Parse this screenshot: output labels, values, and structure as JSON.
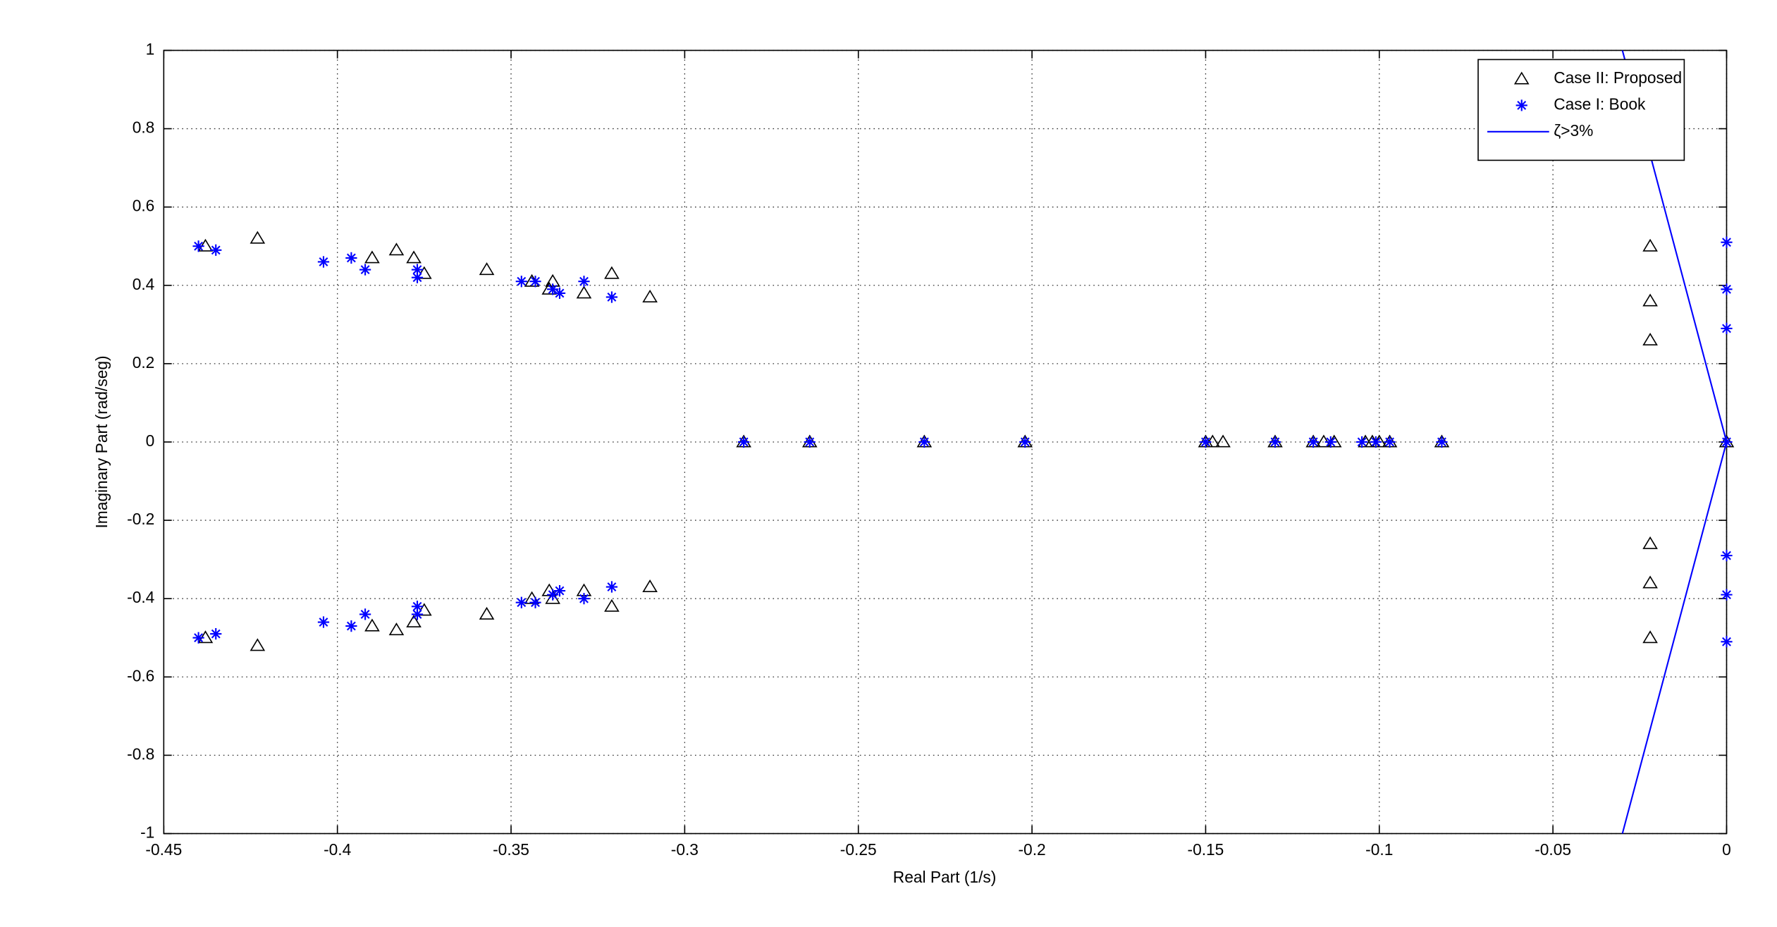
{
  "chart_data": {
    "type": "scatter",
    "xlabel": "Real Part (1/s)",
    "ylabel": "Imaginary Part (rad/seg)",
    "xlim": [
      -0.45,
      0
    ],
    "ylim": [
      -1,
      1
    ],
    "xticks": [
      -0.45,
      -0.4,
      -0.35,
      -0.3,
      -0.25,
      -0.2,
      -0.15,
      -0.1,
      -0.05,
      0
    ],
    "yticks": [
      -1,
      -0.8,
      -0.6,
      -0.4,
      -0.2,
      0,
      0.2,
      0.4,
      0.6,
      0.8,
      1
    ],
    "grid": true,
    "legend": "upper right",
    "series": [
      {
        "name": "Case II: Proposed",
        "color": "#000000",
        "marker": "triangle",
        "x": [
          -0.438,
          -0.423,
          -0.39,
          -0.383,
          -0.378,
          -0.375,
          -0.357,
          -0.344,
          -0.338,
          -0.339,
          -0.329,
          -0.321,
          -0.31,
          -0.022,
          -0.022,
          -0.022,
          -0.438,
          -0.423,
          -0.39,
          -0.383,
          -0.378,
          -0.375,
          -0.357,
          -0.344,
          -0.338,
          -0.339,
          -0.329,
          -0.321,
          -0.31,
          -0.022,
          -0.022,
          -0.022,
          -0.283,
          -0.264,
          -0.231,
          -0.202,
          -0.15,
          -0.148,
          -0.145,
          -0.13,
          -0.119,
          -0.116,
          -0.113,
          -0.104,
          -0.102,
          -0.1,
          -0.097,
          -0.082,
          0
        ],
        "values": [
          0.5,
          0.52,
          0.47,
          0.49,
          0.47,
          0.43,
          0.44,
          0.41,
          0.41,
          0.39,
          0.38,
          0.43,
          0.37,
          0.5,
          0.36,
          0.26,
          -0.5,
          -0.52,
          -0.47,
          -0.48,
          -0.46,
          -0.43,
          -0.44,
          -0.4,
          -0.4,
          -0.38,
          -0.38,
          -0.42,
          -0.37,
          -0.5,
          -0.36,
          -0.26,
          0,
          0,
          0,
          0,
          0,
          0,
          0,
          0,
          0,
          0,
          0,
          0,
          0,
          0,
          0,
          0,
          0
        ]
      },
      {
        "name": "Case I: Book",
        "color": "#0000ff",
        "marker": "star",
        "x": [
          -0.44,
          -0.435,
          -0.404,
          -0.396,
          -0.392,
          -0.377,
          -0.377,
          -0.347,
          -0.343,
          -0.338,
          -0.336,
          -0.329,
          -0.321,
          0,
          0,
          0,
          -0.44,
          -0.435,
          -0.404,
          -0.396,
          -0.392,
          -0.377,
          -0.377,
          -0.347,
          -0.343,
          -0.338,
          -0.336,
          -0.329,
          -0.321,
          0,
          0,
          0,
          -0.283,
          -0.264,
          -0.231,
          -0.202,
          -0.15,
          -0.13,
          -0.119,
          -0.114,
          -0.105,
          -0.101,
          -0.097,
          -0.082,
          0
        ],
        "values": [
          0.5,
          0.49,
          0.46,
          0.47,
          0.44,
          0.44,
          0.42,
          0.41,
          0.41,
          0.39,
          0.38,
          0.41,
          0.37,
          0.51,
          0.39,
          0.29,
          -0.5,
          -0.49,
          -0.46,
          -0.47,
          -0.44,
          -0.44,
          -0.42,
          -0.41,
          -0.41,
          -0.39,
          -0.38,
          -0.4,
          -0.37,
          -0.51,
          -0.39,
          -0.29,
          0,
          0,
          0,
          0,
          0,
          0,
          0,
          0,
          0,
          0,
          0,
          0,
          0
        ]
      },
      {
        "name": "ζ>3%",
        "color": "#0000ff",
        "marker": "line",
        "x": [
          -0.03,
          0,
          -0.03
        ],
        "values": [
          1,
          0,
          -1
        ]
      }
    ]
  }
}
